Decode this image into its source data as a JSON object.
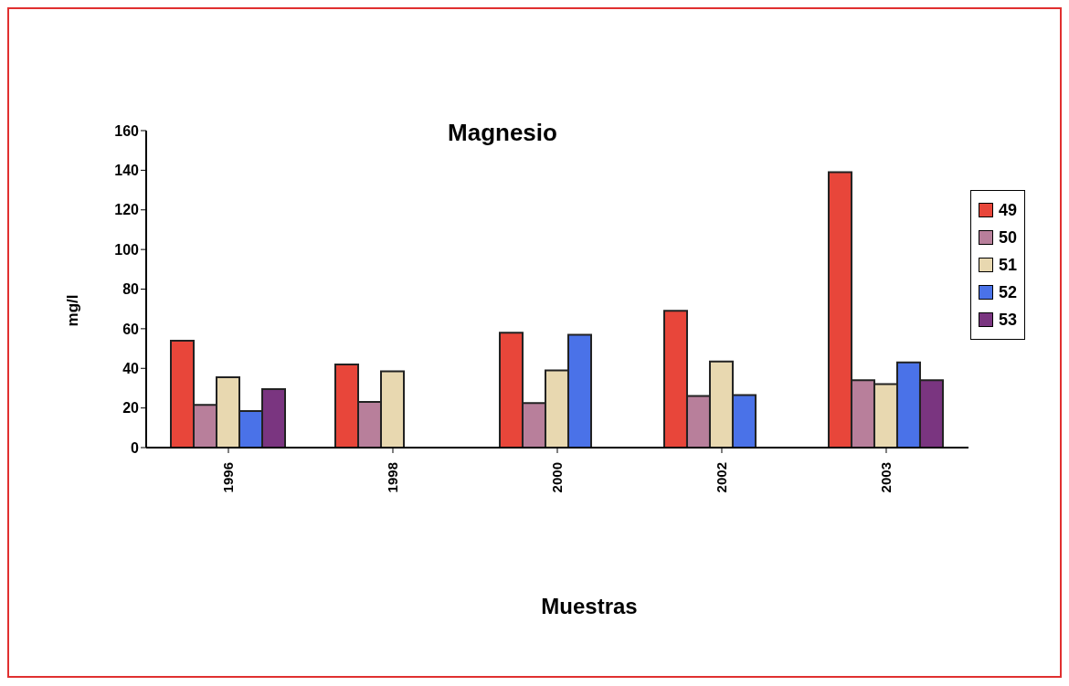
{
  "chart_data": {
    "type": "bar",
    "title": "Magnesio",
    "xlabel": "Muestras",
    "ylabel": "mg/l",
    "categories": [
      "1996",
      "1998",
      "2000",
      "2002",
      "2003"
    ],
    "series": [
      {
        "name": "49",
        "color": "#e8463a",
        "values": [
          54,
          42,
          58,
          69,
          139
        ]
      },
      {
        "name": "50",
        "color": "#b87f9b",
        "values": [
          21.5,
          23,
          22.5,
          26,
          34
        ]
      },
      {
        "name": "51",
        "color": "#e8d8b0",
        "values": [
          35.5,
          38.5,
          39,
          43.5,
          32
        ]
      },
      {
        "name": "52",
        "color": "#4a72e8",
        "values": [
          18.5,
          null,
          57,
          26.5,
          43
        ]
      },
      {
        "name": "53",
        "color": "#7a3580",
        "values": [
          29.5,
          null,
          null,
          null,
          34
        ]
      }
    ],
    "ylim": [
      0,
      160
    ],
    "yticks": [
      0,
      20,
      40,
      60,
      80,
      100,
      120,
      140,
      160
    ],
    "grid": false,
    "legend": "right"
  }
}
